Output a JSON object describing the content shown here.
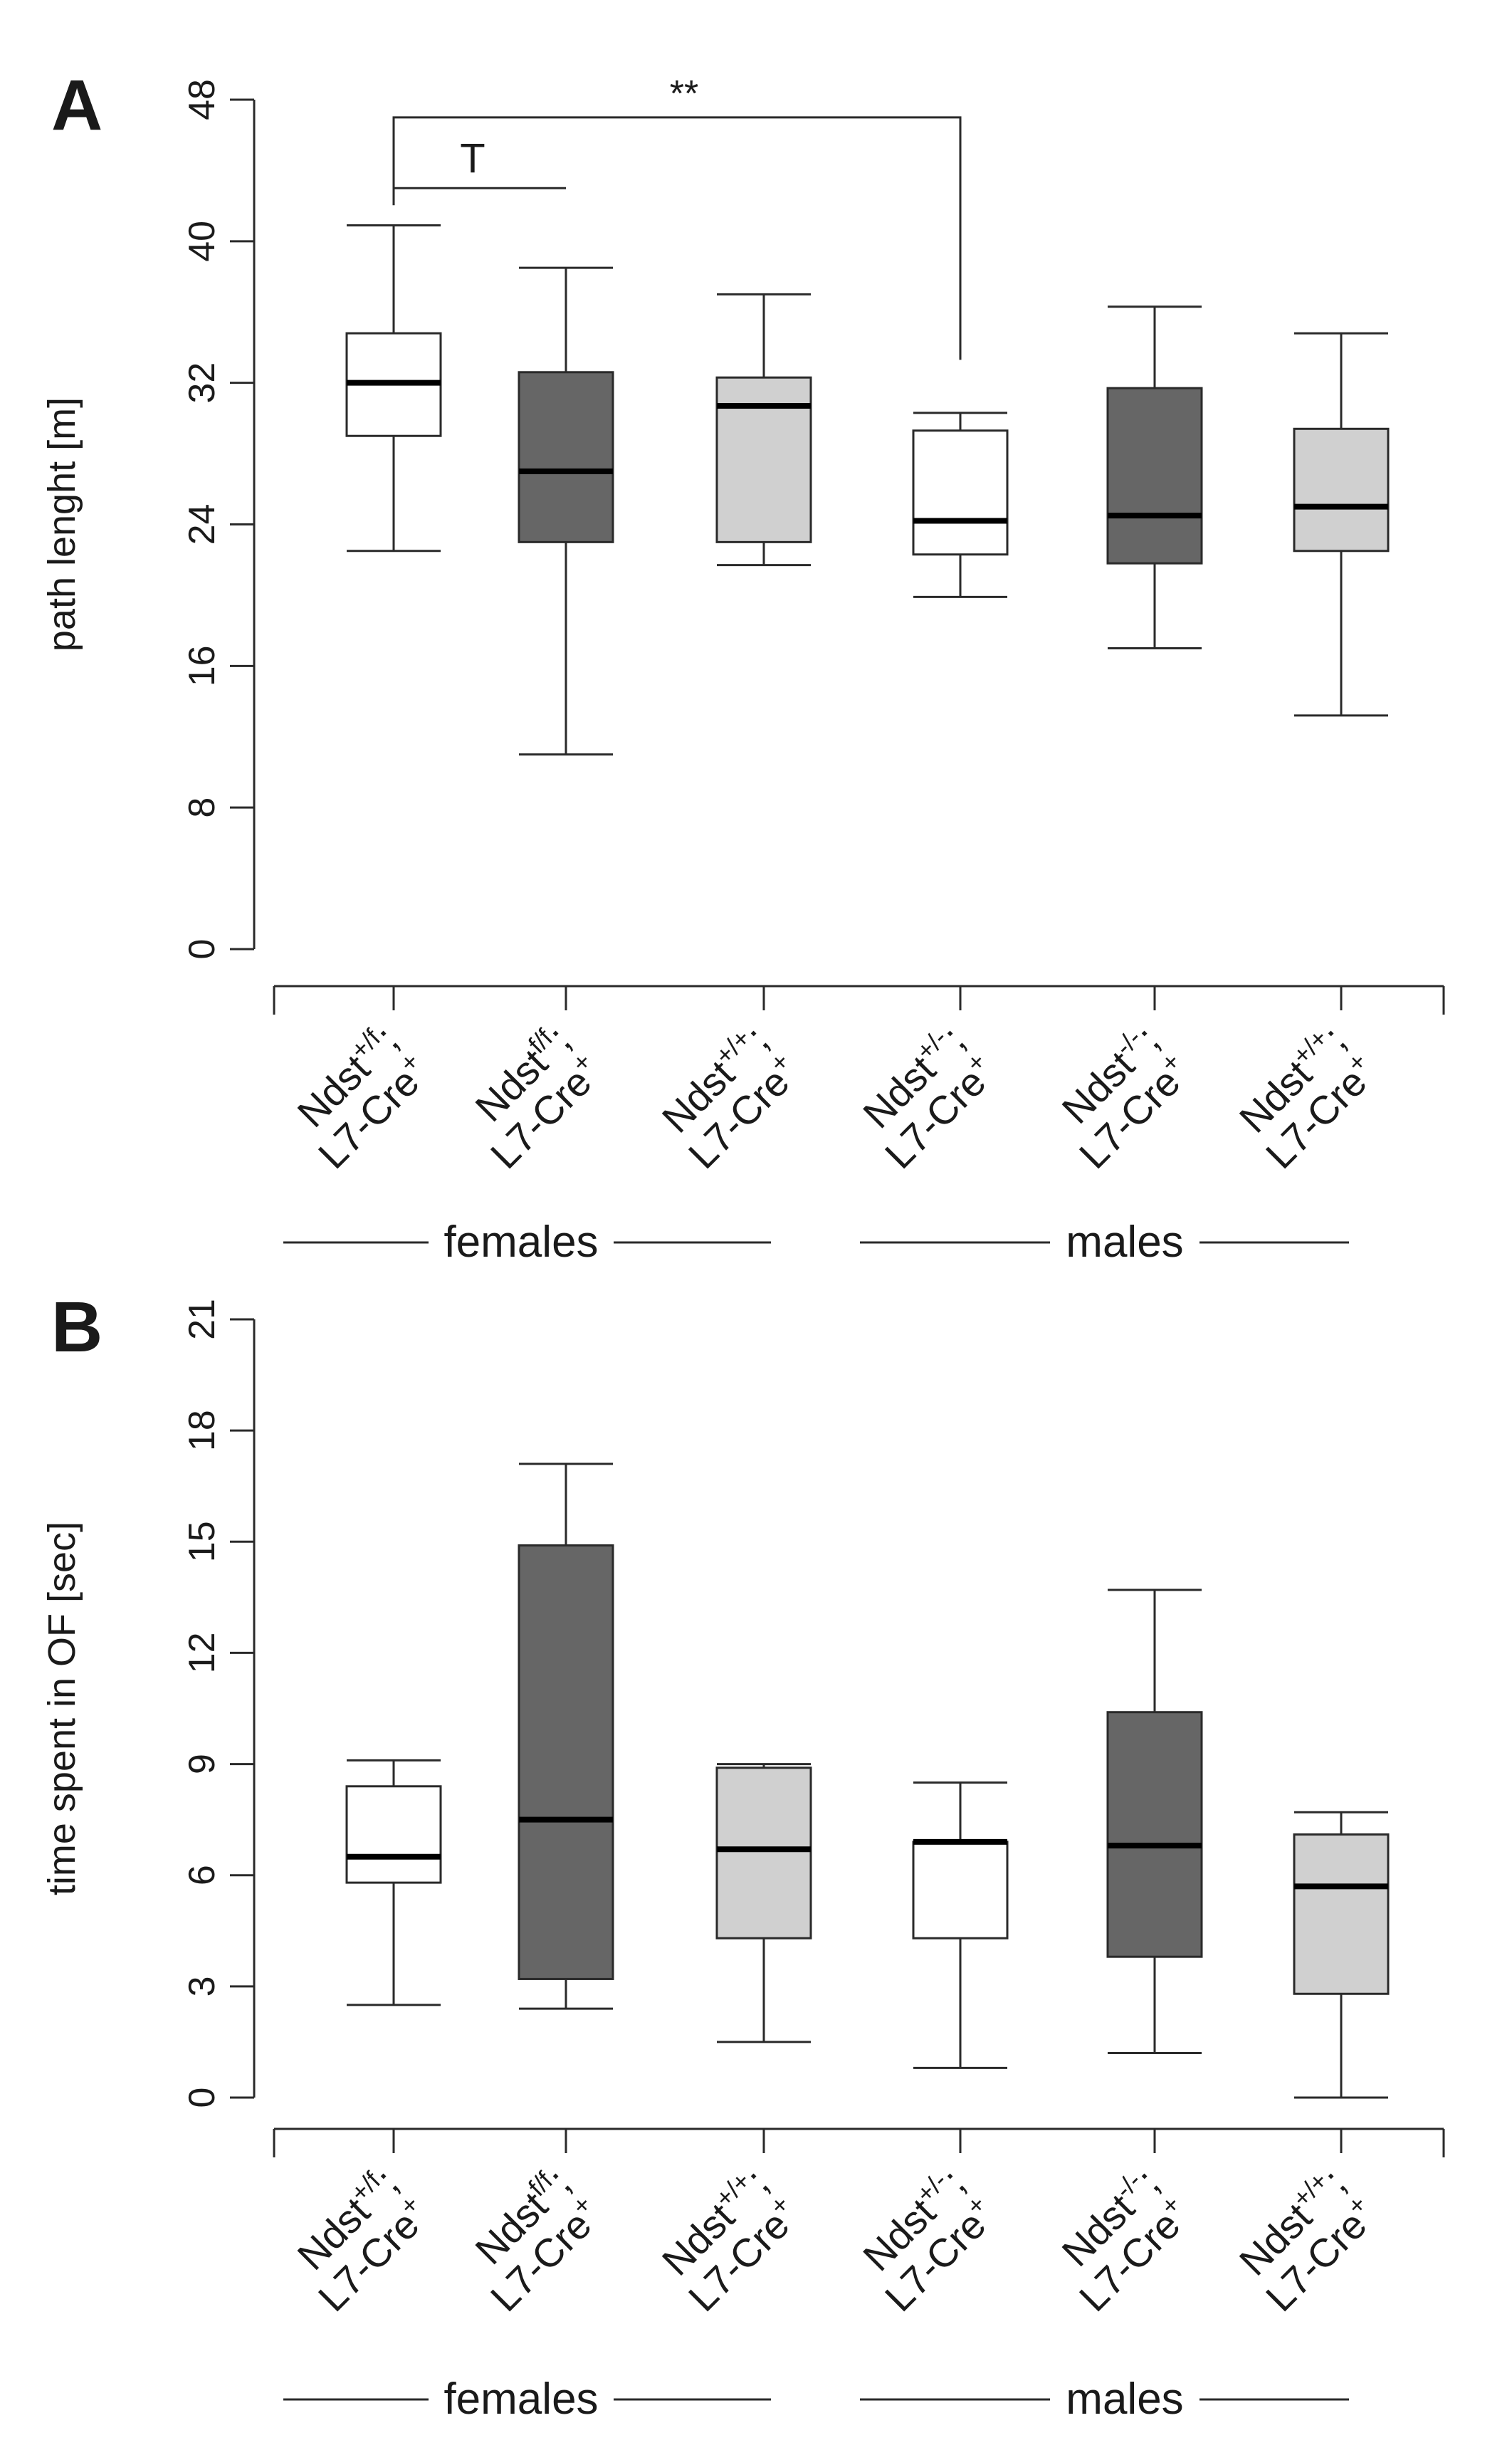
{
  "chart_data": [
    {
      "panel_label": "A",
      "type": "box",
      "ylabel": "path lenght [m]",
      "ylim": [
        0,
        48
      ],
      "yticks": [
        0,
        8,
        16,
        24,
        32,
        40,
        48
      ],
      "ytick_labels": [
        "0",
        "8",
        "16",
        "24",
        "32",
        "40",
        "48"
      ],
      "categories": [
        {
          "gene": "Ndst",
          "sup": "+/f",
          "sep": ";",
          "line2": "L7-Cre",
          "sup2": "+"
        },
        {
          "gene": "Ndst",
          "sup": "f/f",
          "sep": ";",
          "line2": "L7-Cre",
          "sup2": "+"
        },
        {
          "gene": "Ndst",
          "sup": "+/+",
          "sep": ";",
          "line2": "L7-Cre",
          "sup2": "+"
        },
        {
          "gene": "Ndst",
          "sup": "+/-",
          "sep": ";",
          "line2": "L7-Cre",
          "sup2": "+"
        },
        {
          "gene": "Ndst",
          "sup": "-/-",
          "sep": ";",
          "line2": "L7-Cre",
          "sup2": "+"
        },
        {
          "gene": "Ndst",
          "sup": "+/+",
          "sep": ";",
          "line2": "L7-Cre",
          "sup2": "+"
        }
      ],
      "groups": [
        "females",
        "males"
      ],
      "series": [
        {
          "min": 22.5,
          "q1": 29.0,
          "median": 32.0,
          "q3": 34.8,
          "max": 40.9,
          "fill": "#ffffff"
        },
        {
          "min": 11.0,
          "q1": 23.0,
          "median": 27.0,
          "q3": 32.6,
          "max": 38.5,
          "fill": "#666666"
        },
        {
          "min": 21.7,
          "q1": 23.0,
          "median": 30.7,
          "q3": 32.3,
          "max": 37.0,
          "fill": "#d0d0d0"
        },
        {
          "min": 19.9,
          "q1": 22.3,
          "median": 24.2,
          "q3": 29.3,
          "max": 30.3,
          "fill": "#ffffff"
        },
        {
          "min": 17.0,
          "q1": 21.8,
          "median": 24.5,
          "q3": 31.7,
          "max": 36.3,
          "fill": "#666666"
        },
        {
          "min": 13.2,
          "q1": 22.5,
          "median": 25.0,
          "q3": 29.4,
          "max": 34.8,
          "fill": "#d0d0d0"
        }
      ],
      "annotations": [
        {
          "text": "T",
          "from": 0,
          "to": 1,
          "level": 43
        },
        {
          "text": "**",
          "from": 0,
          "to": 3,
          "level": 47
        }
      ]
    },
    {
      "panel_label": "B",
      "type": "box",
      "ylabel": "time spent in OF [sec]",
      "ylim": [
        0,
        21
      ],
      "yticks": [
        0,
        3,
        6,
        9,
        12,
        15,
        18,
        21
      ],
      "ytick_labels": [
        "0",
        "3",
        "6",
        "9",
        "12",
        "15",
        "18",
        "21"
      ],
      "categories": [
        {
          "gene": "Ndst",
          "sup": "+/f",
          "sep": ";",
          "line2": "L7-Cre",
          "sup2": "+"
        },
        {
          "gene": "Ndst",
          "sup": "f/f",
          "sep": ";",
          "line2": "L7-Cre",
          "sup2": "+"
        },
        {
          "gene": "Ndst",
          "sup": "+/+",
          "sep": ";",
          "line2": "L7-Cre",
          "sup2": "+"
        },
        {
          "gene": "Ndst",
          "sup": "+/-",
          "sep": ";",
          "line2": "L7-Cre",
          "sup2": "+"
        },
        {
          "gene": "Ndst",
          "sup": "-/-",
          "sep": ";",
          "line2": "L7-Cre",
          "sup2": "+"
        },
        {
          "gene": "Ndst",
          "sup": "+/+",
          "sep": ";",
          "line2": "L7-Cre",
          "sup2": "+"
        }
      ],
      "groups": [
        "females",
        "males"
      ],
      "series": [
        {
          "min": 2.5,
          "q1": 5.8,
          "median": 6.5,
          "q3": 8.4,
          "max": 9.1,
          "fill": "#ffffff"
        },
        {
          "min": 2.4,
          "q1": 3.2,
          "median": 7.5,
          "q3": 14.9,
          "max": 17.1,
          "fill": "#666666"
        },
        {
          "min": 1.5,
          "q1": 4.3,
          "median": 6.7,
          "q3": 8.9,
          "max": 9.0,
          "fill": "#d0d0d0"
        },
        {
          "min": 0.8,
          "q1": 4.3,
          "median": 6.9,
          "q3": 6.9,
          "max": 8.5,
          "fill": "#ffffff"
        },
        {
          "min": 1.2,
          "q1": 3.8,
          "median": 6.8,
          "q3": 10.4,
          "max": 13.7,
          "fill": "#666666"
        },
        {
          "min": 0.0,
          "q1": 2.8,
          "median": 5.7,
          "q3": 7.1,
          "max": 7.7,
          "fill": "#d0d0d0"
        }
      ]
    }
  ]
}
